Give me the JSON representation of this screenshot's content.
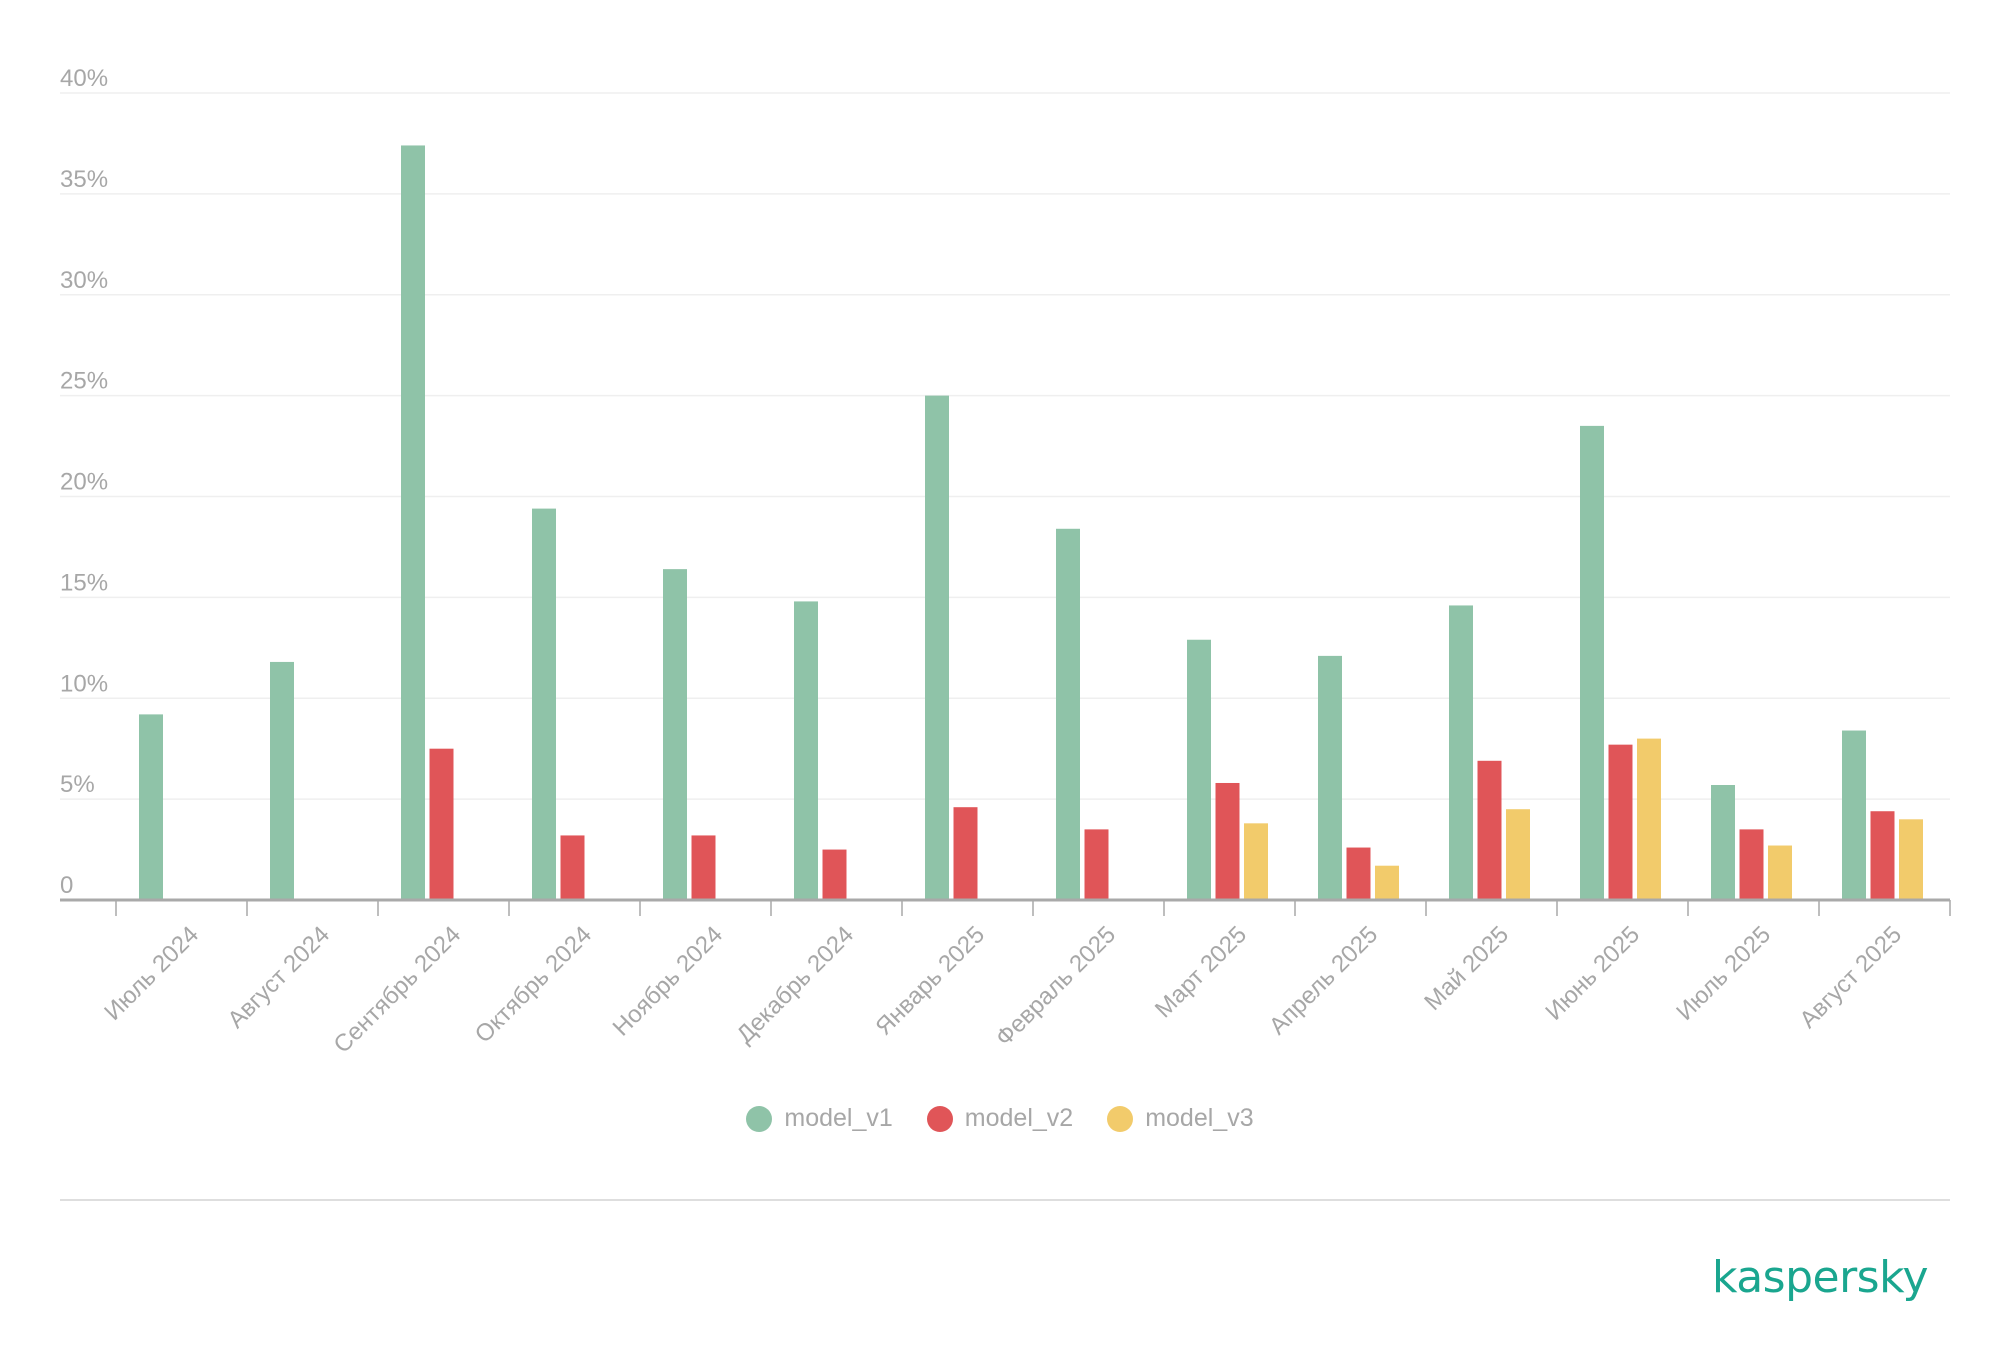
{
  "chart_data": {
    "type": "bar",
    "y_tick_labels": [
      "0",
      "5%",
      "10%",
      "15%",
      "20%",
      "25%",
      "30%",
      "35%",
      "40%"
    ],
    "ylim": [
      0,
      40
    ],
    "grid": true,
    "legend_position": "bottom-center",
    "categories": [
      "Июль 2024",
      "Август 2024",
      "Сентябрь 2024",
      "Октябрь 2024",
      "Ноябрь 2024",
      "Декабрь 2024",
      "Январь 2025",
      "Февраль 2025",
      "Март 2025",
      "Апрель 2025",
      "Май 2025",
      "Июнь 2025",
      "Июль 2025",
      "Август 2025"
    ],
    "series": [
      {
        "name": "model_v1",
        "color": "#8fc3a8",
        "values": [
          9.2,
          11.8,
          37.4,
          19.4,
          16.4,
          14.8,
          25.0,
          18.4,
          12.9,
          12.1,
          14.6,
          23.5,
          5.7,
          8.4
        ]
      },
      {
        "name": "model_v2",
        "color": "#e05558",
        "values": [
          null,
          null,
          7.5,
          3.2,
          3.2,
          2.5,
          4.6,
          3.5,
          5.8,
          2.6,
          6.9,
          7.7,
          3.5,
          4.4
        ]
      },
      {
        "name": "model_v3",
        "color": "#f2cb6b",
        "values": [
          null,
          null,
          null,
          null,
          null,
          null,
          null,
          null,
          3.8,
          1.7,
          4.5,
          8.0,
          2.7,
          4.0
        ]
      }
    ]
  },
  "brand": {
    "logo_text": "kaspersky",
    "logo_color": "#1aa68f"
  }
}
